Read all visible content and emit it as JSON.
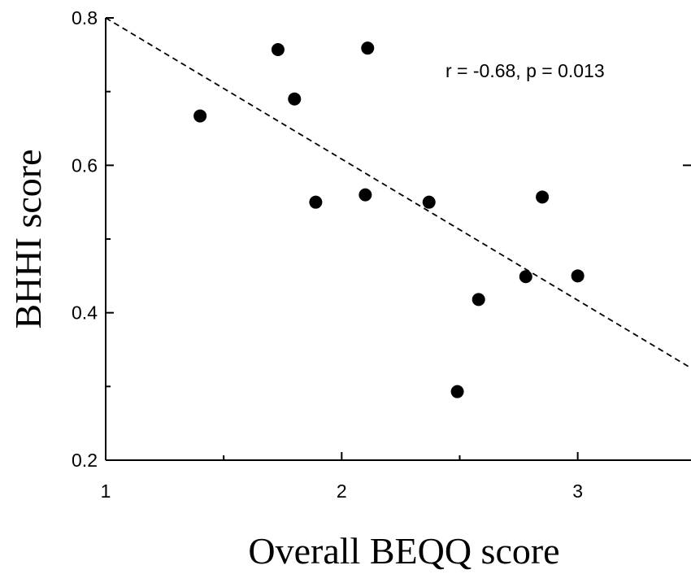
{
  "chart_data": {
    "type": "scatter",
    "xlabel": "Overall BEQQ score",
    "ylabel": "BHHI score",
    "xlim": [
      1,
      3.48
    ],
    "ylim": [
      0.2,
      0.8
    ],
    "x_ticks": [
      1,
      2,
      3
    ],
    "x_tick_labels": [
      "1",
      "2",
      "3"
    ],
    "y_ticks": [
      0.2,
      0.4,
      0.6,
      0.8
    ],
    "y_tick_labels": [
      "0.2",
      "0.4",
      "0.6",
      "0.8"
    ],
    "annotation": "r = -0.68, p = 0.013",
    "grid": false,
    "points": [
      {
        "x": 1.4,
        "y": 0.667
      },
      {
        "x": 1.73,
        "y": 0.757
      },
      {
        "x": 1.8,
        "y": 0.69
      },
      {
        "x": 1.89,
        "y": 0.55
      },
      {
        "x": 2.1,
        "y": 0.56
      },
      {
        "x": 2.11,
        "y": 0.759
      },
      {
        "x": 2.37,
        "y": 0.55
      },
      {
        "x": 2.49,
        "y": 0.293
      },
      {
        "x": 2.58,
        "y": 0.418
      },
      {
        "x": 2.78,
        "y": 0.449
      },
      {
        "x": 2.85,
        "y": 0.557
      },
      {
        "x": 3.0,
        "y": 0.45
      }
    ],
    "trend_line": {
      "style": "dashed",
      "x": [
        1,
        3.48
      ],
      "y": [
        0.8,
        0.325
      ]
    }
  }
}
